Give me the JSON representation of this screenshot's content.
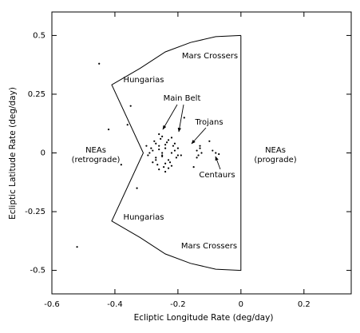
{
  "chart_data": {
    "type": "scatter",
    "xlabel": "Ecliptic Longitude Rate (deg/day)",
    "ylabel": "Ecliptic Latitude Rate (deg/day)",
    "xlim": [
      -0.6,
      0.35
    ],
    "ylim": [
      -0.6,
      0.6
    ],
    "xticks": [
      -0.6,
      -0.4,
      -0.2,
      0,
      0.2
    ],
    "yticks": [
      -0.5,
      -0.25,
      0,
      0.25,
      0.5
    ],
    "color": "#000000",
    "x": [
      -0.28,
      -0.27,
      -0.26,
      -0.25,
      -0.24,
      -0.23,
      -0.22,
      -0.21,
      -0.2,
      -0.29,
      -0.275,
      -0.265,
      -0.255,
      -0.245,
      -0.235,
      -0.225,
      -0.215,
      -0.205,
      -0.285,
      -0.295,
      -0.27,
      -0.26,
      -0.25,
      -0.24,
      -0.23,
      -0.22,
      -0.21,
      -0.26,
      -0.25,
      -0.24,
      -0.28,
      -0.27,
      -0.23,
      -0.22,
      -0.2,
      -0.19,
      -0.3,
      -0.25,
      -0.24,
      -0.26,
      -0.14,
      -0.135,
      -0.13,
      -0.125,
      -0.14,
      -0.13,
      -0.08,
      -0.07,
      -0.09,
      -0.45,
      -0.52,
      -0.35,
      -0.33,
      -0.18,
      -0.15,
      -0.38,
      -0.1,
      -0.42,
      -0.36
    ],
    "y": [
      0.01,
      -0.02,
      0.03,
      -0.01,
      0.02,
      -0.03,
      0.0,
      0.04,
      -0.01,
      0.0,
      0.05,
      -0.05,
      0.06,
      -0.06,
      0.045,
      -0.04,
      0.03,
      -0.02,
      0.02,
      -0.01,
      -0.03,
      0.015,
      -0.015,
      0.035,
      0.055,
      -0.055,
      0.01,
      -0.07,
      0.07,
      -0.045,
      -0.04,
      0.04,
      -0.065,
      0.065,
      0.02,
      -0.01,
      0.03,
      0.0,
      -0.08,
      0.08,
      0.01,
      -0.01,
      0.02,
      0.0,
      -0.02,
      0.03,
      0.0,
      -0.005,
      0.01,
      0.38,
      -0.4,
      0.2,
      -0.15,
      0.15,
      -0.06,
      -0.05,
      0.05,
      0.1,
      0.12
    ],
    "boundary": {
      "x": [
        0,
        -0.08,
        -0.16,
        -0.24,
        -0.32,
        -0.41,
        -0.31,
        -0.41,
        -0.32,
        -0.24,
        -0.16,
        -0.08,
        0,
        0
      ],
      "y": [
        0.5,
        0.495,
        0.47,
        0.43,
        0.36,
        0.29,
        0,
        -0.29,
        -0.36,
        -0.43,
        -0.47,
        -0.495,
        -0.5,
        0.5
      ]
    },
    "annotations": [
      "Mars Crossers",
      "Hungarias",
      "Main Belt",
      "Trojans",
      "NEAs",
      "(retrograde)",
      "NEAs",
      "(prograde)",
      "Centaurs",
      "Hungarias",
      "Mars Crossers"
    ]
  }
}
